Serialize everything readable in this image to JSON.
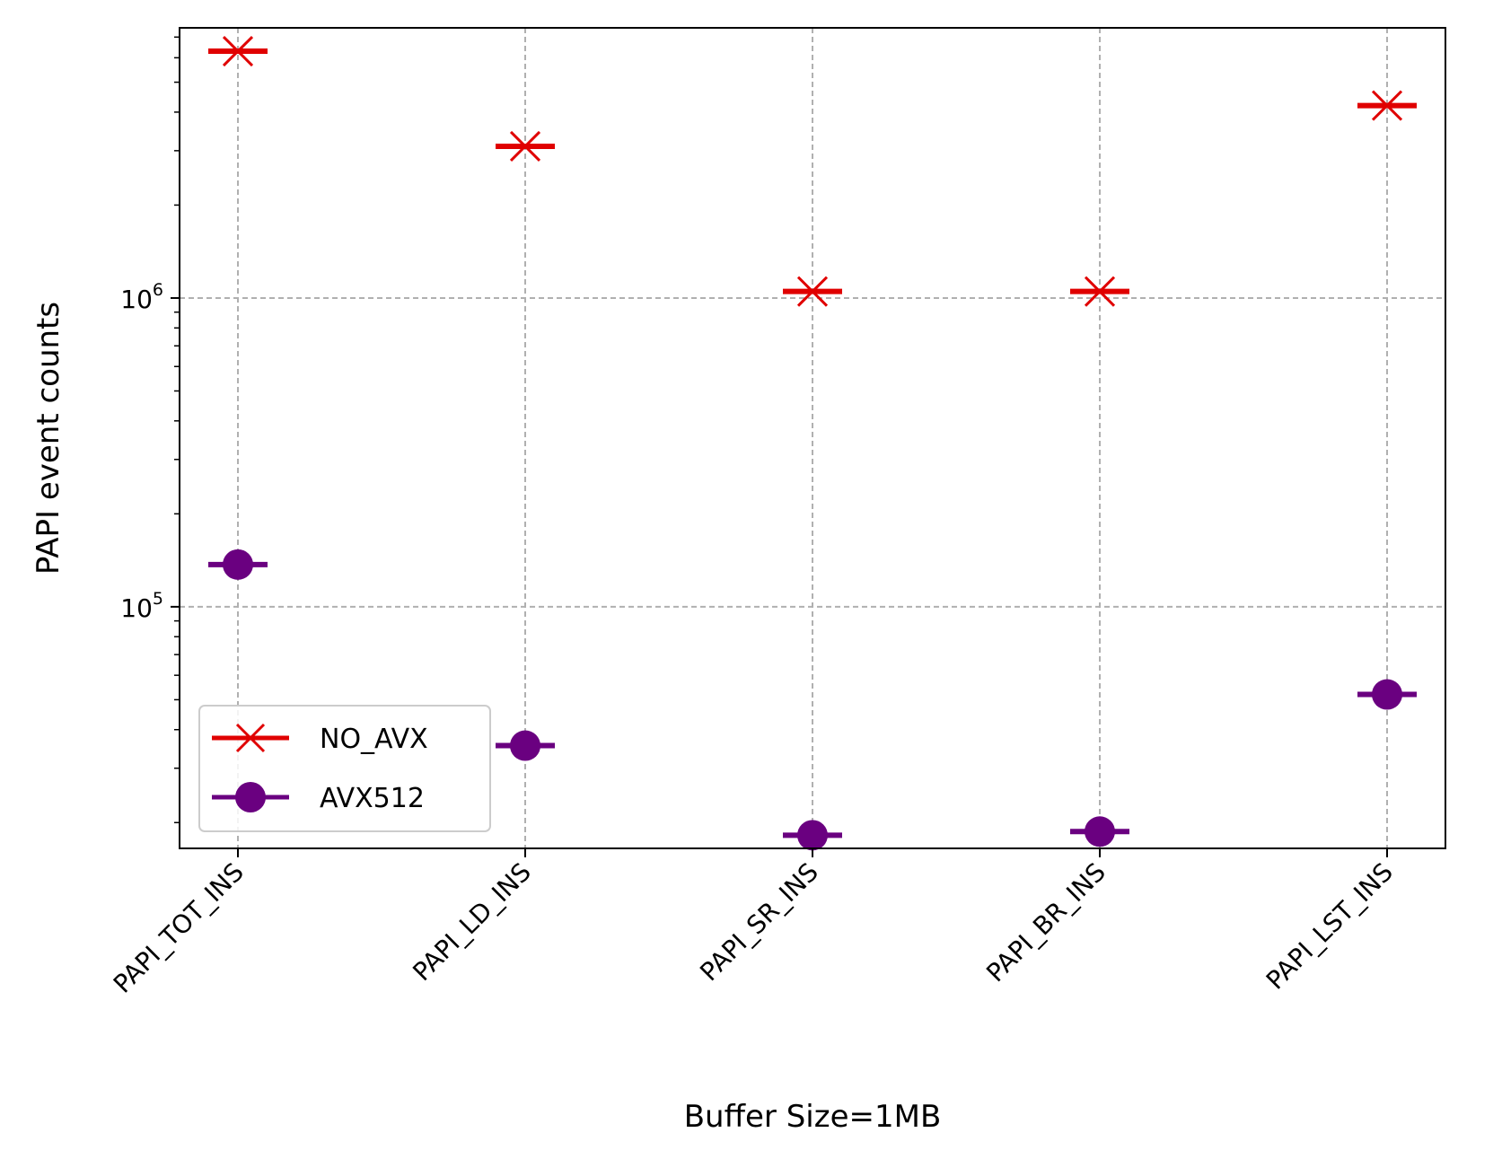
{
  "chart_data": {
    "type": "scatter",
    "categories": [
      "PAPI_TOT_INS",
      "PAPI_LD_INS",
      "PAPI_SR_INS",
      "PAPI_BR_INS",
      "PAPI_LST_INS"
    ],
    "series": [
      {
        "name": "NO_AVX",
        "color": "#e00000",
        "marker": "x",
        "values": [
          6300000,
          3100000,
          1050000,
          1050000,
          4200000
        ]
      },
      {
        "name": "AVX512",
        "color": "#6a0080",
        "marker": "circle",
        "values": [
          137000,
          35500,
          18200,
          18700,
          52000
        ]
      }
    ],
    "xlabel": "Buffer Size=1MB",
    "ylabel": "PAPI event counts",
    "yscale": "log",
    "ylim": [
      16500,
      7500000
    ],
    "yticks": [
      {
        "value": 100000,
        "base": "10",
        "exp": "5"
      },
      {
        "value": 1000000,
        "base": "10",
        "exp": "6"
      }
    ],
    "grid": true,
    "legend_loc": "lower left"
  }
}
